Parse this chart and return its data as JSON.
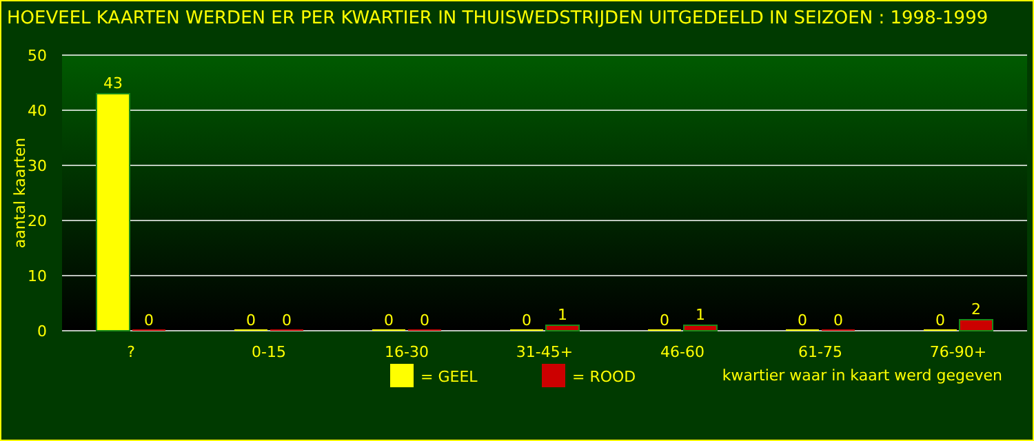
{
  "chart_data": {
    "type": "bar",
    "title": "HOEVEEL KAARTEN WERDEN ER PER KWARTIER IN THUISWEDSTRIJDEN UITGEDEELD IN SEIZOEN : 1998-1999",
    "xlabel": "kwartier waar in kaart werd gegeven",
    "ylabel": "aantal kaarten",
    "categories": [
      "?",
      "0-15",
      "16-30",
      "31-45+",
      "46-60",
      "61-75",
      "76-90+"
    ],
    "series": [
      {
        "name": "= GEEL",
        "color": "#ffff00",
        "values": [
          43,
          0,
          0,
          0,
          0,
          0,
          0
        ]
      },
      {
        "name": "= ROOD",
        "color": "#cc0000",
        "values": [
          0,
          0,
          0,
          1,
          1,
          0,
          2
        ]
      }
    ],
    "ylim": [
      0,
      50
    ],
    "yticks": [
      0,
      10,
      20,
      30,
      40,
      50
    ],
    "grid": "y",
    "data_labels": true,
    "legend": "bottom"
  }
}
